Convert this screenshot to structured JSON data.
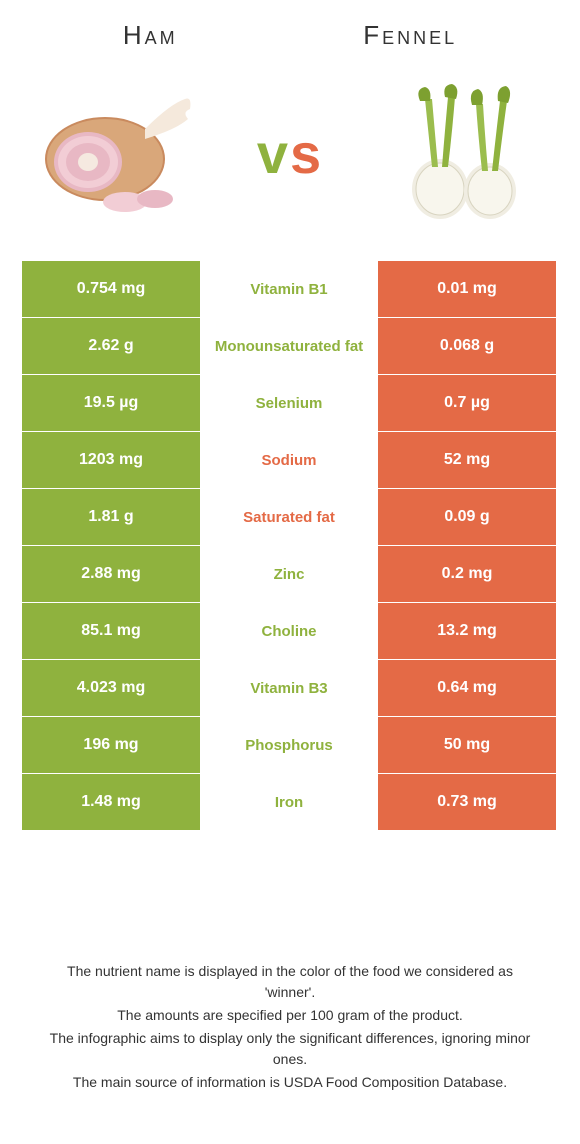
{
  "left_food": {
    "name": "Ham",
    "color": "#8fb23e"
  },
  "right_food": {
    "name": "Fennel",
    "color": "#e46a46"
  },
  "rows": [
    {
      "label": "Vitamin B1",
      "left": "0.754 mg",
      "right": "0.01 mg",
      "winner": "left"
    },
    {
      "label": "Monounsaturated fat",
      "left": "2.62 g",
      "right": "0.068 g",
      "winner": "left"
    },
    {
      "label": "Selenium",
      "left": "19.5 µg",
      "right": "0.7 µg",
      "winner": "left"
    },
    {
      "label": "Sodium",
      "left": "1203 mg",
      "right": "52 mg",
      "winner": "right"
    },
    {
      "label": "Saturated fat",
      "left": "1.81 g",
      "right": "0.09 g",
      "winner": "right"
    },
    {
      "label": "Zinc",
      "left": "2.88 mg",
      "right": "0.2 mg",
      "winner": "left"
    },
    {
      "label": "Choline",
      "left": "85.1 mg",
      "right": "13.2 mg",
      "winner": "left"
    },
    {
      "label": "Vitamin B3",
      "left": "4.023 mg",
      "right": "0.64 mg",
      "winner": "left"
    },
    {
      "label": "Phosphorus",
      "left": "196 mg",
      "right": "50 mg",
      "winner": "left"
    },
    {
      "label": "Iron",
      "left": "1.48 mg",
      "right": "0.73 mg",
      "winner": "left"
    }
  ],
  "footer": {
    "line1": "The nutrient name is displayed in the color of the food we considered as 'winner'.",
    "line2": "The amounts are specified per 100 gram of the product.",
    "line3": "The infographic aims to display only the significant differences, ignoring minor ones.",
    "line4": "The main source of information is USDA Food Composition Database."
  },
  "colors": {
    "left_bg": "#8fb23e",
    "right_bg": "#e46a46",
    "mid_bg": "#ffffff"
  }
}
